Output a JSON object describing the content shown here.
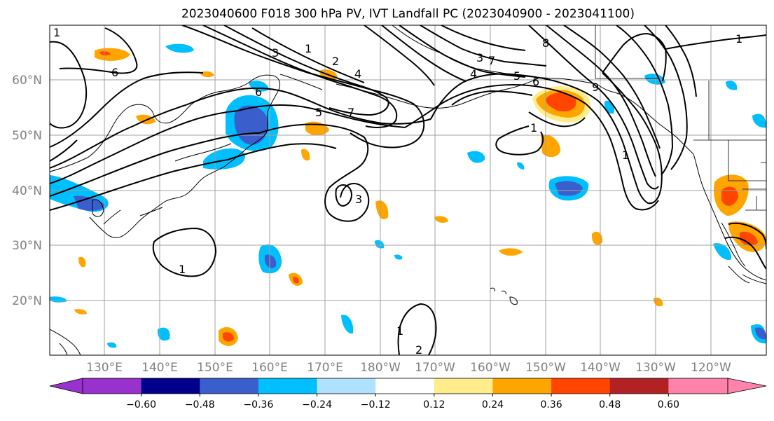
{
  "title": "2023040600 F018 300 hPa PV, IVT Landfall PC (2023040900 - 2023041100)",
  "map": {
    "lat_labels": [
      "60°N",
      "50°N",
      "40°N",
      "30°N",
      "20°N"
    ],
    "lon_labels": [
      "130°E",
      "140°E",
      "150°E",
      "160°E",
      "170°E",
      "180°W",
      "170°W",
      "160°W",
      "150°W",
      "140°W",
      "130°W",
      "120°W"
    ],
    "contour_labels": [
      "6",
      "3",
      "1",
      "2",
      "4",
      "6",
      "5",
      "7",
      "3",
      "7",
      "4",
      "5",
      "6",
      "8",
      "1",
      "9",
      "1",
      "1",
      "3",
      "1",
      "1",
      "2",
      "1"
    ]
  },
  "colorbar": {
    "tick_labels": [
      "−0.60",
      "−0.48",
      "−0.36",
      "−0.24",
      "−0.12",
      "0.12",
      "0.24",
      "0.36",
      "0.48",
      "0.60"
    ],
    "colors": [
      "#9932cc",
      "#00008b",
      "#3a5fcd",
      "#00bfff",
      "#b0e2ff",
      "#ffffff",
      "#ffec8b",
      "#ffa500",
      "#ff4500",
      "#b22222",
      "#ff82ab"
    ]
  }
}
